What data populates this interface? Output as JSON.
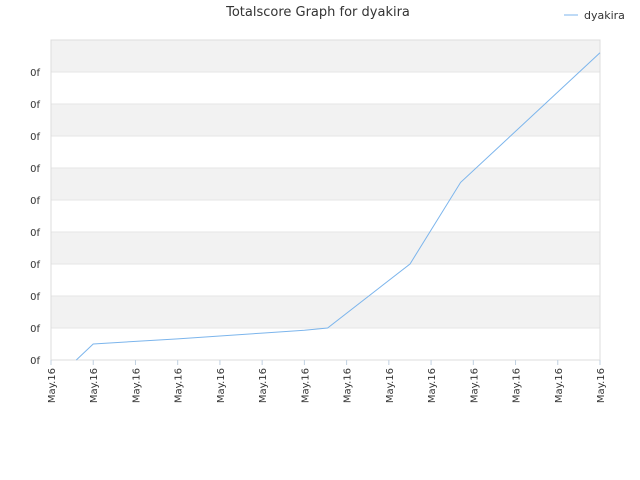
{
  "chart_data": {
    "type": "line",
    "title": "Totalscore Graph for dyakira",
    "xlabel": "",
    "ylabel": "",
    "x": [
      "May.16",
      "May.16",
      "May.16",
      "May.16",
      "May.16",
      "May.16",
      "May.16",
      "May.16",
      "May.16",
      "May.16",
      "May.16",
      "May.16",
      "May.16",
      "May.16"
    ],
    "y_tick_labels": [
      "0f",
      "0f",
      "0f",
      "0f",
      "0f",
      "0f",
      "0f",
      "0f",
      "0f",
      "0f"
    ],
    "series": [
      {
        "name": "dyakira",
        "color": "#7cb5ec",
        "points": [
          [
            0.6,
            0.0
          ],
          [
            1.0,
            0.5
          ],
          [
            2.0,
            0.58
          ],
          [
            3.0,
            0.66
          ],
          [
            4.0,
            0.75
          ],
          [
            5.0,
            0.84
          ],
          [
            6.0,
            0.93
          ],
          [
            6.55,
            1.0
          ],
          [
            8.5,
            3.0
          ],
          [
            9.7,
            5.55
          ],
          [
            13.0,
            9.6
          ]
        ]
      }
    ],
    "xlim": [
      0,
      13
    ],
    "ylim": [
      0,
      10
    ],
    "grid": true,
    "legend": "top-right"
  }
}
